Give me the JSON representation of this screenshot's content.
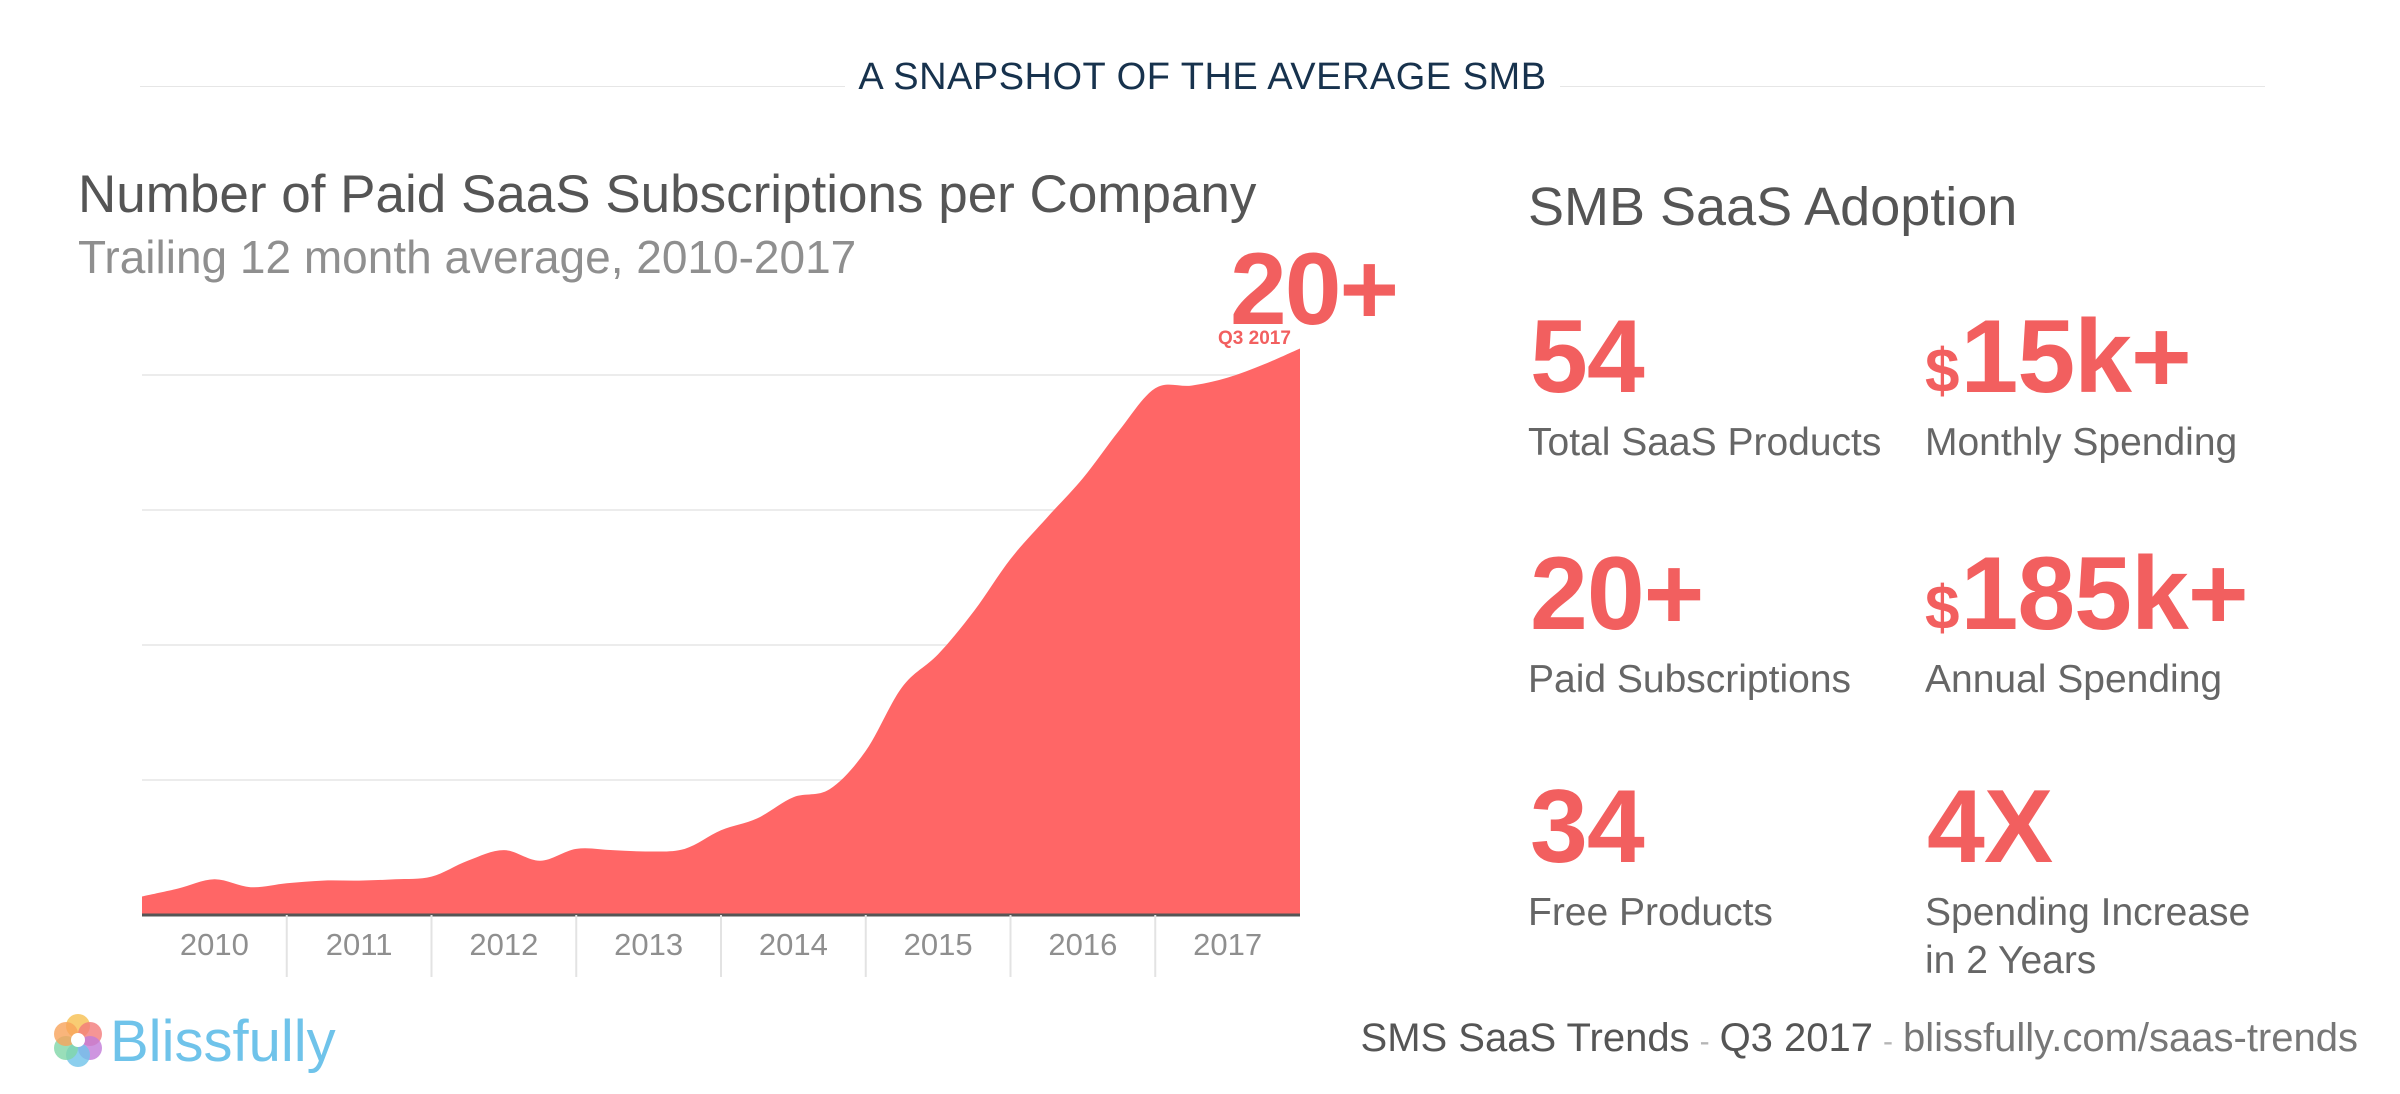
{
  "banner": {
    "title": "A SNAPSHOT OF THE AVERAGE SMB"
  },
  "chart_data": {
    "type": "area",
    "title": "Number of Paid SaaS Subscriptions per Company",
    "subtitle": "Trailing 12 month average, 2010-2017",
    "xlabel": "",
    "ylabel": "",
    "x_tick_labels": [
      "2010",
      "2011",
      "2012",
      "2013",
      "2014",
      "2015",
      "2016",
      "2017"
    ],
    "x": [
      2009.75,
      2010.0,
      2010.25,
      2010.5,
      2010.75,
      2011.0,
      2011.25,
      2011.5,
      2011.75,
      2012.0,
      2012.25,
      2012.5,
      2012.75,
      2013.0,
      2013.25,
      2013.5,
      2013.75,
      2014.0,
      2014.25,
      2014.5,
      2014.75,
      2015.0,
      2015.25,
      2015.5,
      2015.75,
      2016.0,
      2016.25,
      2016.5,
      2016.75,
      2017.0,
      2017.25,
      2017.5,
      2017.75
    ],
    "values": [
      0.7,
      1.0,
      1.35,
      1.05,
      1.2,
      1.3,
      1.3,
      1.35,
      1.45,
      2.05,
      2.45,
      2.05,
      2.5,
      2.45,
      2.4,
      2.5,
      3.2,
      3.65,
      4.45,
      4.75,
      6.2,
      8.6,
      9.85,
      11.5,
      13.45,
      15.0,
      16.5,
      18.3,
      19.9,
      20.0,
      20.3,
      20.8,
      21.4
    ],
    "ylim": [
      0,
      20.4
    ],
    "xlim": [
      2009.75,
      2017.75
    ],
    "grid": true,
    "color": "#ff6666",
    "callout": {
      "value": "20+",
      "label": "Q3 2017"
    }
  },
  "adoption": {
    "title": "SMB SaaS Adoption",
    "stats": [
      {
        "prefix": "",
        "value": "54",
        "label": [
          "Total SaaS Products"
        ]
      },
      {
        "prefix": "$",
        "value": "15k+",
        "label": [
          "Monthly Spending"
        ]
      },
      {
        "prefix": "",
        "value": "20+",
        "label": [
          "Paid Subscriptions"
        ]
      },
      {
        "prefix": "$",
        "value": "185k+",
        "label": [
          "Annual Spending"
        ]
      },
      {
        "prefix": "",
        "value": "34",
        "label": [
          "Free Products"
        ]
      },
      {
        "prefix": "",
        "value": "4X",
        "label": [
          "Spending Increase",
          "in 2 Years"
        ]
      }
    ]
  },
  "brand": {
    "name": "Blissfully"
  },
  "footer": {
    "report": "SMS SaaS Trends",
    "separator": "-",
    "period": "Q3 2017",
    "url": "blissfully.com/saas-trends"
  },
  "colors": {
    "accent": "#f25f5f",
    "navy": "#17324d",
    "brand": "#6fc3ea"
  }
}
